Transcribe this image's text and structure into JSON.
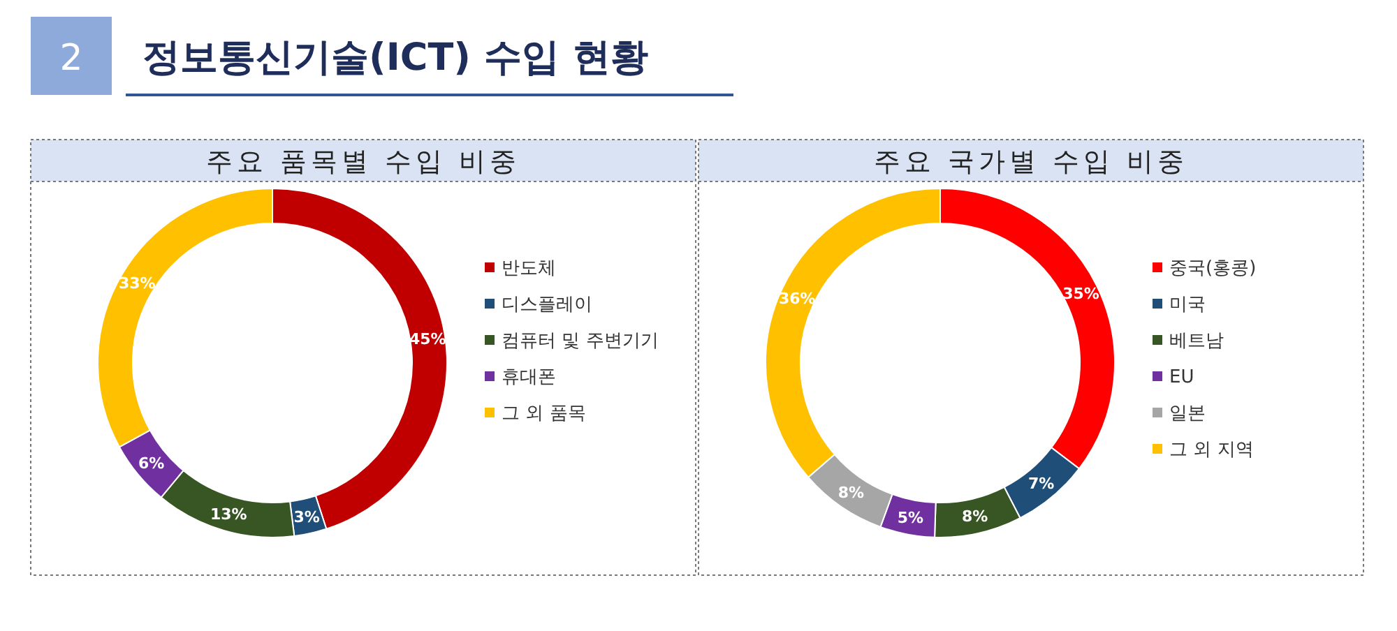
{
  "chart_data": [
    {
      "type": "other",
      "title": "정보통신기술(ICT) 수입 현황",
      "annotations": [
        "2"
      ]
    },
    {
      "type": "donut",
      "title": "주요 품목별 수입 비중",
      "categories": [
        "반도체",
        "디스플레이",
        "컴퓨터 및 주변기기",
        "휴대폰",
        "그 외 품목"
      ],
      "values": [
        45,
        3,
        13,
        6,
        33
      ],
      "colors": [
        "#c00000",
        "#1f4e79",
        "#375623",
        "#7030a0",
        "#ffc000"
      ],
      "value_labels": [
        "45%",
        "3%",
        "13%",
        "6%",
        "33%"
      ],
      "legend": "right"
    },
    {
      "type": "donut",
      "title": "주요 국가별 수입 비중",
      "categories": [
        "중국(홍콩)",
        "미국",
        "베트남",
        "EU",
        "일본",
        "그 외 지역"
      ],
      "values": [
        35,
        7,
        8,
        5,
        8,
        36
      ],
      "colors": [
        "#ff0000",
        "#1f4e79",
        "#375623",
        "#7030a0",
        "#a6a6a6",
        "#ffc000"
      ],
      "value_labels": [
        "35%",
        "7%",
        "8%",
        "5%",
        "8%",
        "36%"
      ],
      "legend": "right"
    }
  ]
}
